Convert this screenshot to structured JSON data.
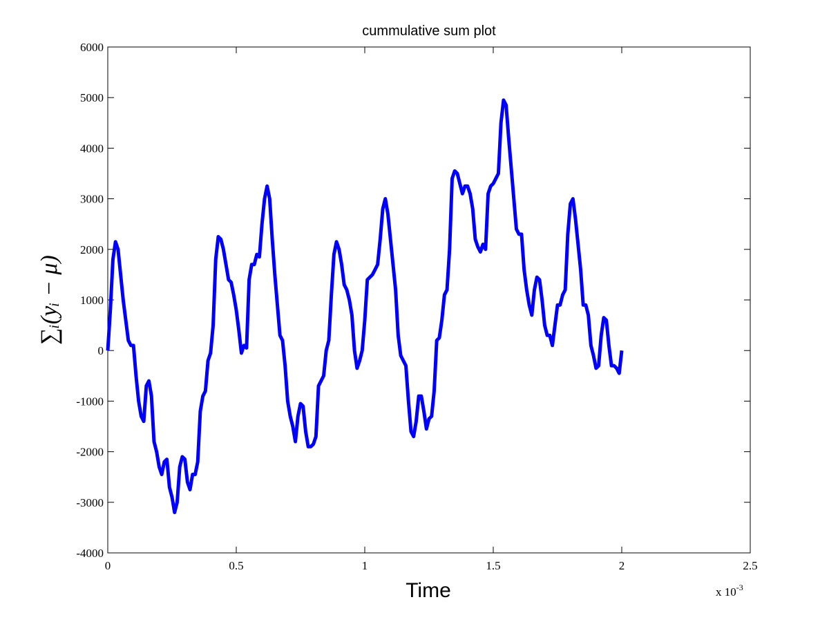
{
  "chart_data": {
    "type": "line",
    "title": "cummulative sum plot",
    "xlabel": "Time",
    "ylabel": "∑ᵢ(yᵢ − μ)",
    "x_multiplier": {
      "base": "x 10",
      "exponent": "-3"
    },
    "xlim": [
      0,
      2.5
    ],
    "xticks": [
      0,
      0.5,
      1,
      1.5,
      2,
      2.5
    ],
    "ylim": [
      -4000,
      6000
    ],
    "yticks": [
      -4000,
      -3000,
      -2000,
      -1000,
      0,
      1000,
      2000,
      3000,
      4000,
      5000,
      6000
    ],
    "grid": false,
    "x": [
      0,
      0.01,
      0.02,
      0.03,
      0.04,
      0.05,
      0.06,
      0.07,
      0.08,
      0.09,
      0.1,
      0.11,
      0.12,
      0.13,
      0.14,
      0.15,
      0.16,
      0.17,
      0.18,
      0.19,
      0.2,
      0.21,
      0.22,
      0.23,
      0.24,
      0.25,
      0.26,
      0.27,
      0.28,
      0.29,
      0.3,
      0.31,
      0.32,
      0.33,
      0.34,
      0.35,
      0.36,
      0.37,
      0.38,
      0.39,
      0.4,
      0.41,
      0.42,
      0.43,
      0.44,
      0.45,
      0.46,
      0.47,
      0.48,
      0.49,
      0.5,
      0.51,
      0.52,
      0.53,
      0.54,
      0.55,
      0.56,
      0.57,
      0.58,
      0.59,
      0.6,
      0.61,
      0.62,
      0.63,
      0.64,
      0.65,
      0.66,
      0.67,
      0.68,
      0.69,
      0.7,
      0.71,
      0.72,
      0.73,
      0.74,
      0.75,
      0.76,
      0.77,
      0.78,
      0.79,
      0.8,
      0.81,
      0.82,
      0.83,
      0.84,
      0.85,
      0.86,
      0.87,
      0.88,
      0.89,
      0.9,
      0.91,
      0.92,
      0.93,
      0.94,
      0.95,
      0.96,
      0.97,
      0.98,
      0.99,
      1,
      1.01,
      1.02,
      1.03,
      1.04,
      1.05,
      1.06,
      1.07,
      1.08,
      1.09,
      1.1,
      1.11,
      1.12,
      1.13,
      1.14,
      1.15,
      1.16,
      1.17,
      1.18,
      1.19,
      1.2,
      1.21,
      1.22,
      1.23,
      1.24,
      1.25,
      1.26,
      1.27,
      1.28,
      1.29,
      1.3,
      1.31,
      1.32,
      1.33,
      1.34,
      1.35,
      1.36,
      1.37,
      1.38,
      1.39,
      1.4,
      1.41,
      1.42,
      1.43,
      1.44,
      1.45,
      1.46,
      1.47,
      1.48,
      1.49,
      1.5,
      1.51,
      1.52,
      1.53,
      1.54,
      1.55,
      1.56,
      1.57,
      1.58,
      1.59,
      1.6,
      1.61,
      1.62,
      1.63,
      1.64,
      1.65,
      1.66,
      1.67,
      1.68,
      1.69,
      1.7,
      1.71,
      1.72,
      1.73,
      1.74,
      1.75,
      1.76,
      1.77,
      1.78,
      1.79,
      1.8,
      1.81,
      1.82,
      1.83,
      1.84,
      1.85,
      1.86,
      1.87,
      1.88,
      1.89,
      1.9,
      1.91,
      1.92,
      1.93,
      1.94,
      1.95,
      1.96,
      1.97,
      1.98,
      1.99,
      2
    ],
    "series": [
      {
        "color": "#0000ff",
        "values": [
          0,
          800,
          1800,
          2150,
          2000,
          1500,
          1000,
          600,
          200,
          100,
          100,
          -500,
          -1000,
          -1300,
          -1400,
          -700,
          -600,
          -900,
          -1800,
          -2000,
          -2300,
          -2450,
          -2200,
          -2150,
          -2700,
          -2900,
          -3200,
          -3000,
          -2300,
          -2100,
          -2150,
          -2600,
          -2750,
          -2450,
          -2450,
          -2200,
          -1200,
          -900,
          -800,
          -200,
          -50,
          500,
          1800,
          2250,
          2200,
          2000,
          1700,
          1400,
          1350,
          1100,
          800,
          400,
          -50,
          100,
          50,
          1400,
          1700,
          1700,
          1900,
          1850,
          2500,
          3000,
          3250,
          3000,
          2200,
          1500,
          900,
          300,
          200,
          -300,
          -1000,
          -1300,
          -1500,
          -1800,
          -1300,
          -1050,
          -1100,
          -1600,
          -1900,
          -1900,
          -1850,
          -1700,
          -700,
          -600,
          -500,
          0,
          200,
          1100,
          1900,
          2150,
          2000,
          1700,
          1300,
          1200,
          1000,
          700,
          0,
          -350,
          -200,
          0,
          600,
          1400,
          1450,
          1500,
          1600,
          1700,
          2200,
          2800,
          3000,
          2700,
          2200,
          1700,
          1200,
          300,
          -100,
          -200,
          -300,
          -1000,
          -1600,
          -1700,
          -1400,
          -900,
          -900,
          -1200,
          -1550,
          -1350,
          -1300,
          -800,
          200,
          250,
          600,
          1100,
          1200,
          2000,
          3400,
          3550,
          3500,
          3300,
          3100,
          3250,
          3250,
          3100,
          2800,
          2200,
          2050,
          1950,
          2100,
          2000,
          3100,
          3250,
          3300,
          3400,
          3500,
          4500,
          4950,
          4850,
          4200,
          3600,
          3000,
          2400,
          2300,
          2300,
          1600,
          1200,
          900,
          700,
          1200,
          1450,
          1400,
          1000,
          500,
          300,
          300,
          100,
          500,
          900,
          900,
          1100,
          1200,
          2300,
          2900,
          3000,
          2600,
          2100,
          1600,
          900,
          900,
          700,
          100,
          -100,
          -350,
          -300,
          300,
          650,
          600,
          100,
          -300,
          -300,
          -350,
          -450,
          0
        ]
      }
    ]
  }
}
